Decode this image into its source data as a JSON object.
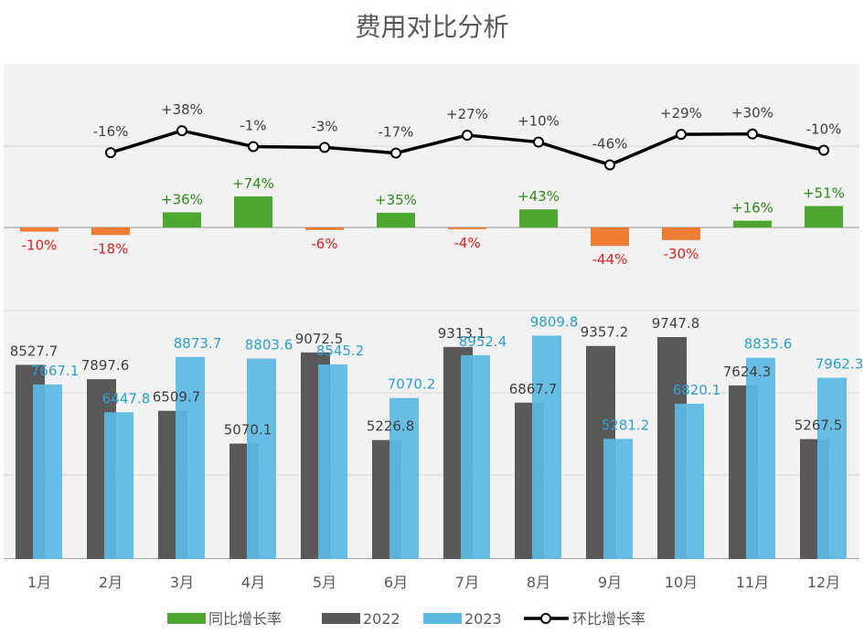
{
  "chart_data": {
    "title": "费用对比分析",
    "type": "bar",
    "categories": [
      "1月",
      "2月",
      "3月",
      "4月",
      "5月",
      "6月",
      "7月",
      "8月",
      "9月",
      "10月",
      "11月",
      "12月"
    ],
    "series": [
      {
        "name": "2022",
        "type": "bar",
        "color": "#595959",
        "values": [
          8527.7,
          7897.6,
          6509.7,
          5070.1,
          9072.5,
          5226.8,
          9313.1,
          6867.7,
          9357.2,
          9747.8,
          7624.3,
          5267.5
        ],
        "labels": [
          "8527.7",
          "7897.6",
          "6509.7",
          "5070.1",
          "9072.5",
          "5226.8",
          "9313.1",
          "6867.7",
          "9357.2",
          "9747.8",
          "7624.3",
          "5267.5"
        ]
      },
      {
        "name": "2023",
        "type": "bar",
        "color": "#5bb9e3",
        "values": [
          7667.1,
          6447.8,
          8873.7,
          8803.6,
          8545.2,
          7070.2,
          8952.4,
          9809.8,
          5281.2,
          6820.1,
          8835.6,
          7962.3
        ],
        "labels": [
          "7667.1",
          "6447.8",
          "8873.7",
          "8803.6",
          "8545.2",
          "7070.2",
          "8952.4",
          "9809.8",
          "5281.2",
          "6820.1",
          "8835.6",
          "7962.3"
        ]
      },
      {
        "name": "同比增长率",
        "type": "bar",
        "color_pos": "#4ea72e",
        "color_neg": "#ee7d31",
        "values": [
          -10,
          -18,
          36,
          74,
          -6,
          35,
          -4,
          43,
          -44,
          -30,
          16,
          51
        ],
        "labels": [
          "-10%",
          "-18%",
          "+36%",
          "+74%",
          "-6%",
          "+35%",
          "-4%",
          "+43%",
          "-44%",
          "-30%",
          "+16%",
          "+51%"
        ]
      },
      {
        "name": "环比增长率",
        "type": "line",
        "color": "#000000",
        "values": [
          null,
          -16,
          38,
          -1,
          -3,
          -17,
          27,
          10,
          -46,
          29,
          30,
          -10
        ],
        "labels": [
          "",
          "-16%",
          "+38%",
          "-1%",
          "-3%",
          "-17%",
          "+27%",
          "+10%",
          "-46%",
          "+29%",
          "+30%",
          "-10%"
        ]
      }
    ],
    "legend": {
      "position": "bottom",
      "entries": [
        "同比增长率",
        "2022",
        "2023",
        "环比增长率"
      ]
    },
    "colors": {
      "bar_label_2023": "#2aa0d0",
      "yoy_pos_label": "#2e8b19",
      "yoy_neg_label": "#e02020"
    }
  }
}
